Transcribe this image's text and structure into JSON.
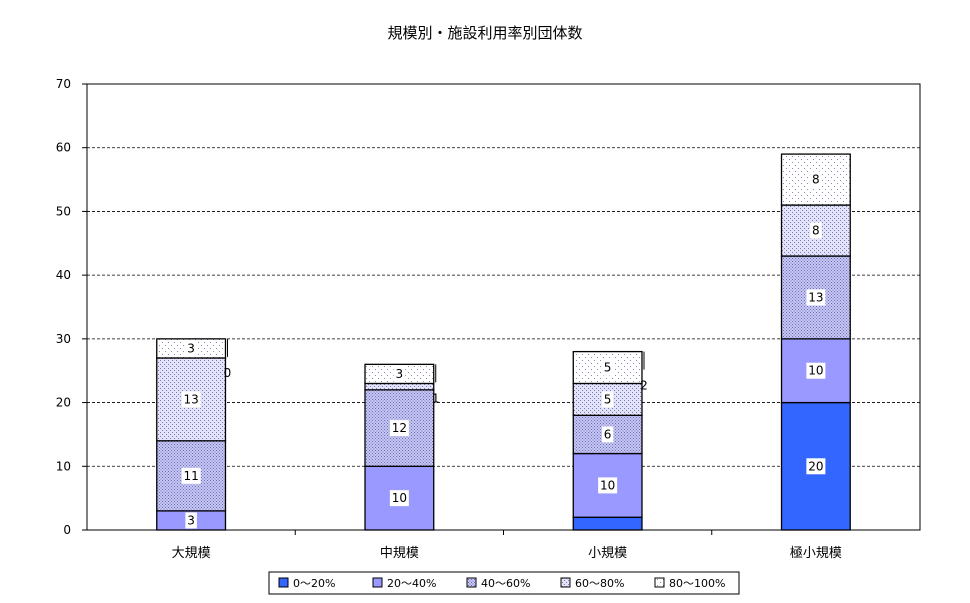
{
  "chart_data": {
    "type": "bar",
    "stacked": true,
    "title": "規模別・施設利用率別団体数",
    "xlabel": "",
    "ylabel": "",
    "ylim": [
      0,
      70
    ],
    "yticks": [
      0,
      10,
      20,
      30,
      40,
      50,
      60,
      70
    ],
    "grid": "horizontal dashed",
    "legend_position": "bottom",
    "categories": [
      "大規模",
      "中規模",
      "小規模",
      "極小規模"
    ],
    "series": [
      {
        "name": "0～20%",
        "values": [
          0,
          0,
          2,
          20
        ],
        "color": "#3366ff",
        "pattern": "solid"
      },
      {
        "name": "20～40%",
        "values": [
          3,
          10,
          10,
          10
        ],
        "color": "#9999ff",
        "pattern": "solid"
      },
      {
        "name": "40～60%",
        "values": [
          11,
          12,
          6,
          13
        ],
        "color": "#c8c8f4",
        "pattern": "dense-dots"
      },
      {
        "name": "60～80%",
        "values": [
          13,
          1,
          5,
          8
        ],
        "color": "#e2e2f8",
        "pattern": "medium-dots"
      },
      {
        "name": "80～100%",
        "values": [
          3,
          3,
          5,
          8
        ],
        "color": "#ffffff",
        "pattern": "sparse-dots"
      }
    ],
    "data_labels": [
      [
        "0",
        "3",
        "11",
        "13",
        "3"
      ],
      [
        "",
        "10",
        "12",
        "1",
        "3"
      ],
      [
        "2",
        "10",
        "6",
        "5",
        "5"
      ],
      [
        "20",
        "10",
        "13",
        "8",
        "8"
      ]
    ]
  }
}
